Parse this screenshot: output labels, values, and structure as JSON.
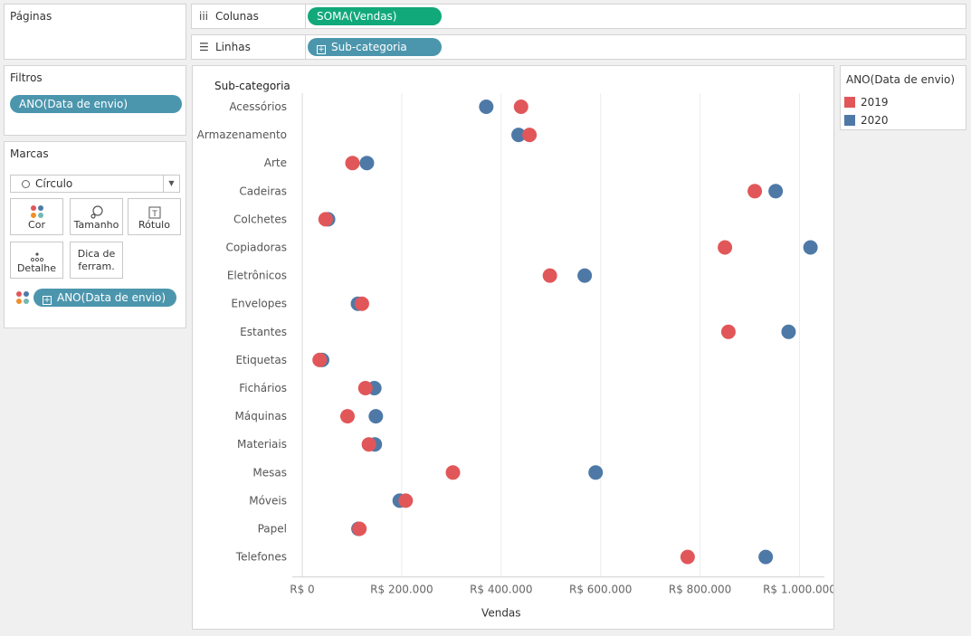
{
  "pages_panel": {
    "title": "Páginas"
  },
  "filters_panel": {
    "title": "Filtros",
    "pill": "ANO(Data de envio)"
  },
  "marks_panel": {
    "title": "Marcas",
    "mark_type": "Círculo",
    "buttons": {
      "color": "Cor",
      "size": "Tamanho",
      "label": "Rótulo",
      "detail": "Detalhe",
      "tooltip_line1": "Dica de",
      "tooltip_line2": "ferram."
    },
    "color_pill": "ANO(Data de envio)"
  },
  "columns_shelf": {
    "label": "Colunas",
    "pill": "SOMA(Vendas)"
  },
  "rows_shelf": {
    "label": "Linhas",
    "pill": "Sub-categoria"
  },
  "legend": {
    "title": "ANO(Data de envio)",
    "items": [
      {
        "label": "2019",
        "color": "#e15759"
      },
      {
        "label": "2020",
        "color": "#4e79a7"
      }
    ]
  },
  "chart_data": {
    "type": "scatter",
    "title": "",
    "xlabel": "Vendas",
    "ylabel": "Sub-categoria",
    "xlim": [
      -20000,
      1050000
    ],
    "x_ticks": [
      0,
      200000,
      400000,
      600000,
      800000,
      1000000
    ],
    "x_tick_labels": [
      "R$ 0",
      "R$ 200.000",
      "R$ 400.000",
      "R$ 600.000",
      "R$ 800.000",
      "R$ 1.000.000"
    ],
    "grid": true,
    "legend_position": "right",
    "categories": [
      "Acessórios",
      "Armazenamento",
      "Arte",
      "Cadeiras",
      "Colchetes",
      "Copiadoras",
      "Eletrônicos",
      "Envelopes",
      "Estantes",
      "Etiquetas",
      "Fichários",
      "Máquinas",
      "Materiais",
      "Mesas",
      "Móveis",
      "Papel",
      "Telefones"
    ],
    "series": [
      {
        "name": "2020",
        "color": "#4e79a7",
        "values": [
          370000,
          435000,
          130000,
          952000,
          52000,
          1022000,
          568000,
          112000,
          978000,
          40000,
          145000,
          148000,
          146000,
          590000,
          196000,
          113000,
          932000
        ]
      },
      {
        "name": "2019",
        "color": "#e15759",
        "values": [
          440000,
          457000,
          101000,
          910000,
          47000,
          850000,
          498000,
          120000,
          857000,
          35000,
          127000,
          91000,
          134000,
          303000,
          208000,
          115000,
          775000
        ]
      }
    ]
  }
}
